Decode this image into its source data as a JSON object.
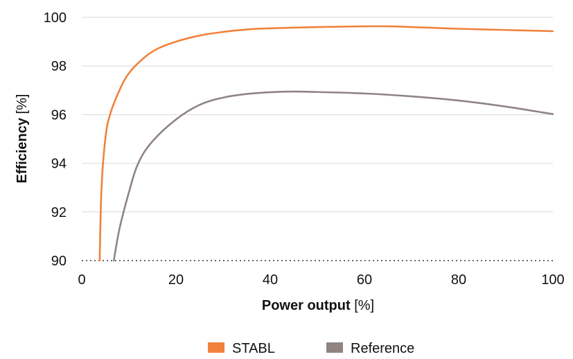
{
  "chart_data": {
    "type": "line",
    "title": "",
    "xlabel": "Power output",
    "xlabel_unit": "[%]",
    "ylabel": "Efficiency",
    "ylabel_unit": "[%]",
    "xlim": [
      0,
      100
    ],
    "ylim": [
      90,
      100
    ],
    "x_ticks": [
      0,
      20,
      40,
      60,
      80,
      100
    ],
    "y_ticks": [
      90,
      92,
      94,
      96,
      98,
      100
    ],
    "grid": "horizontal",
    "baseline_style": "dotted",
    "legend_position": "bottom",
    "series": [
      {
        "name": "STABL",
        "color": "#F0823C",
        "points": [
          [
            3.8,
            90.0
          ],
          [
            4.2,
            93.0
          ],
          [
            5.0,
            95.0
          ],
          [
            6.0,
            96.0
          ],
          [
            8.0,
            97.0
          ],
          [
            10.0,
            97.7
          ],
          [
            13.0,
            98.3
          ],
          [
            16.0,
            98.7
          ],
          [
            20.0,
            99.0
          ],
          [
            25.0,
            99.25
          ],
          [
            30.0,
            99.4
          ],
          [
            35.0,
            99.5
          ],
          [
            40.0,
            99.55
          ],
          [
            50.0,
            99.6
          ],
          [
            60.0,
            99.63
          ],
          [
            65.0,
            99.63
          ],
          [
            70.0,
            99.6
          ],
          [
            80.0,
            99.53
          ],
          [
            90.0,
            99.48
          ],
          [
            100.0,
            99.43
          ]
        ]
      },
      {
        "name": "Reference",
        "color": "#8F8483",
        "points": [
          [
            6.8,
            90.0
          ],
          [
            8.0,
            91.3
          ],
          [
            10.0,
            92.8
          ],
          [
            12.0,
            94.0
          ],
          [
            15.0,
            94.9
          ],
          [
            20.0,
            95.8
          ],
          [
            25.0,
            96.4
          ],
          [
            30.0,
            96.7
          ],
          [
            35.0,
            96.85
          ],
          [
            40.0,
            96.92
          ],
          [
            45.0,
            96.95
          ],
          [
            50.0,
            96.93
          ],
          [
            60.0,
            96.87
          ],
          [
            70.0,
            96.75
          ],
          [
            80.0,
            96.58
          ],
          [
            90.0,
            96.33
          ],
          [
            100.0,
            96.02
          ]
        ]
      }
    ]
  }
}
